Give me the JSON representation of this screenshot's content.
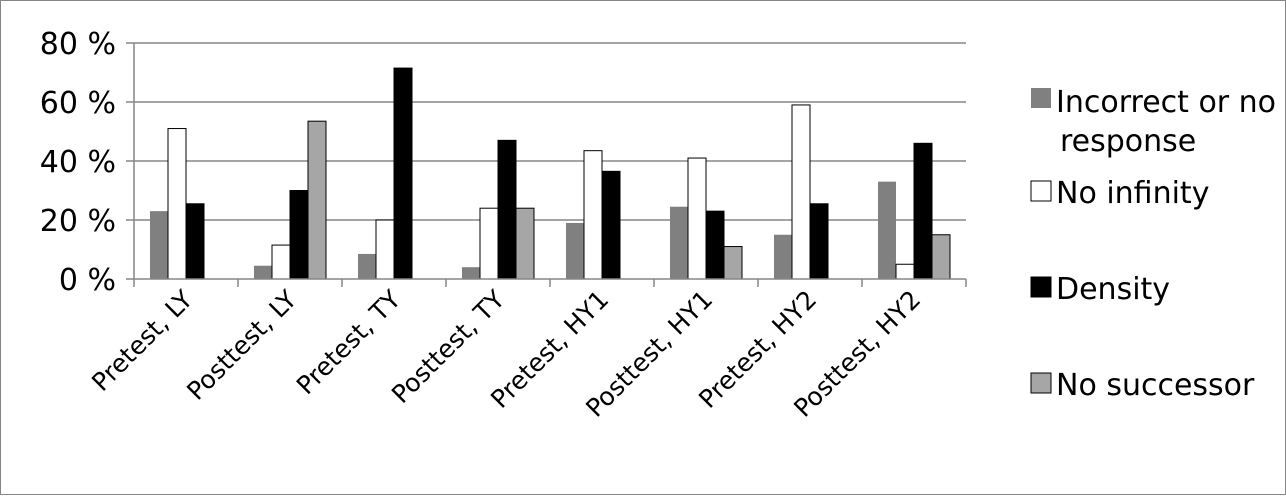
{
  "chart_data": {
    "type": "bar",
    "title": "",
    "xlabel": "",
    "ylabel": "",
    "ylim": [
      0,
      80
    ],
    "yticks": [
      0,
      20,
      40,
      60,
      80
    ],
    "ytick_labels": [
      "0 %",
      "20 %",
      "40 %",
      "60 %",
      "80 %"
    ],
    "grid": true,
    "legend_position": "right",
    "categories": [
      "Pretest, LY",
      "Posttest, LY",
      "Pretest, TY",
      "Posttest, TY",
      "Pretest, HY1",
      "Posttest, HY1",
      "Pretest, HY2",
      "Posttest, HY2"
    ],
    "series": [
      {
        "name": "Incorrect or no response",
        "color": "#808080",
        "values": [
          23,
          4.5,
          8.5,
          4,
          19,
          24.5,
          15,
          33
        ]
      },
      {
        "name": "No infinity",
        "color": "#ffffff",
        "values": [
          51,
          11.5,
          20,
          24,
          43.5,
          41,
          59,
          5
        ]
      },
      {
        "name": "Density",
        "color": "#000000",
        "values": [
          25.5,
          30,
          71.5,
          47,
          36.5,
          23,
          25.5,
          46
        ]
      },
      {
        "name": "No successor",
        "color": "#a6a6a6",
        "values": [
          0,
          53.5,
          0,
          24,
          0,
          11,
          0,
          15
        ]
      }
    ]
  }
}
